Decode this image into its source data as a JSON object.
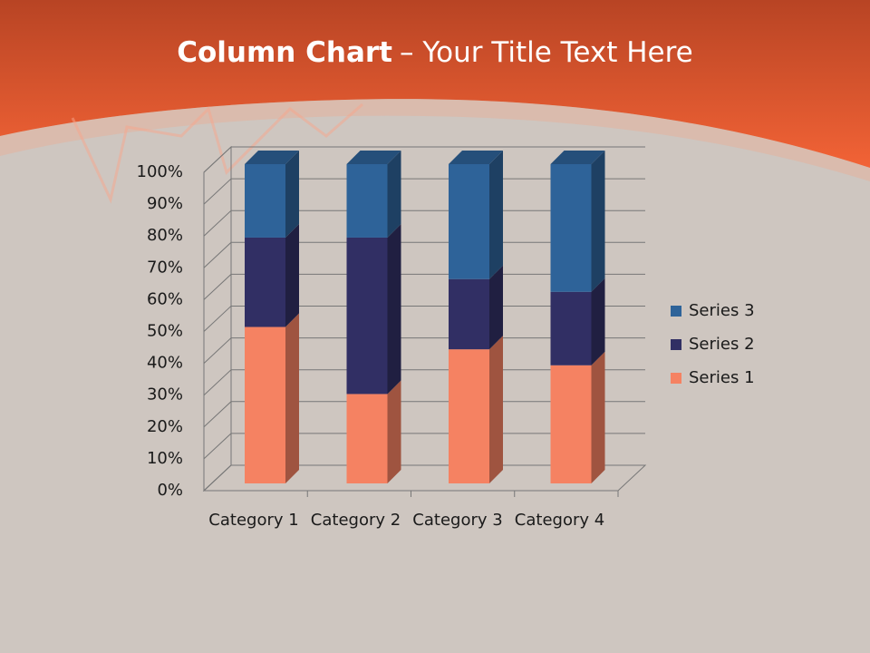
{
  "chart_data": {
    "type": "stacked_bar_100",
    "title_parts": [
      "Column Chart",
      "– Your Title Text Here"
    ],
    "categories": [
      "Category 1",
      "Category 2",
      "Category 3",
      "Category 4"
    ],
    "series": [
      {
        "name": "Series 1",
        "color": "#f58262",
        "values": [
          49,
          28,
          42,
          37
        ]
      },
      {
        "name": "Series 2",
        "color": "#312f64",
        "values": [
          28,
          49,
          22,
          23
        ]
      },
      {
        "name": "Series 3",
        "color": "#2e6399",
        "values": [
          23,
          23,
          36,
          40
        ]
      }
    ],
    "ylim": [
      0,
      100
    ],
    "yticks": [
      {
        "value": 0,
        "label": "0%"
      },
      {
        "value": 10,
        "label": "10%"
      },
      {
        "value": 20,
        "label": "20%"
      },
      {
        "value": 30,
        "label": "30%"
      },
      {
        "value": 40,
        "label": "40%"
      },
      {
        "value": 50,
        "label": "50%"
      },
      {
        "value": 60,
        "label": "60%"
      },
      {
        "value": 70,
        "label": "70%"
      },
      {
        "value": 80,
        "label": "80%"
      },
      {
        "value": 90,
        "label": "90%"
      },
      {
        "value": 100,
        "label": "100%"
      }
    ],
    "grid": true,
    "legend": "right"
  }
}
